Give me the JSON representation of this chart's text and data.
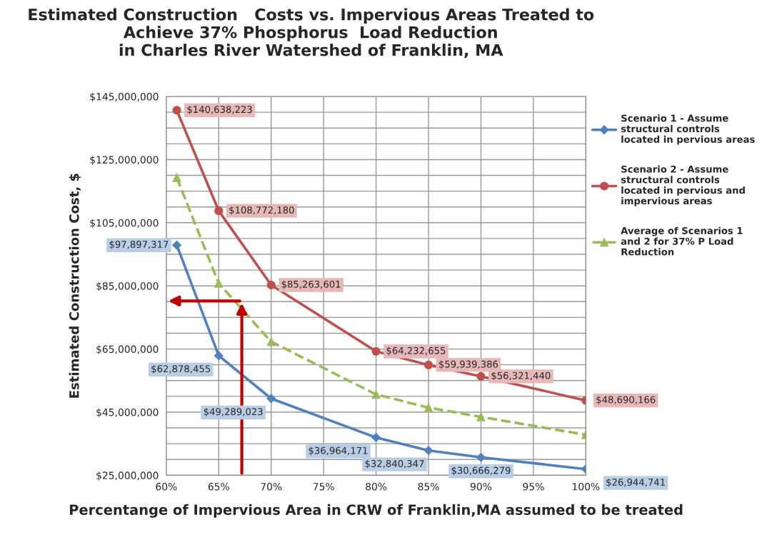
{
  "chart_data": {
    "type": "line",
    "title": "Estimated Construction   Costs vs. Impervious Areas Treated to\nAchieve 37% Phosphorus  Load Reduction\nin Charles River Watershed of Franklin, MA",
    "xlabel": "Percentange of Impervious Area in CRW of Franklin,MA assumed to be treated",
    "ylabel": "Estimated Construction Cost, $",
    "x": [
      61,
      65,
      70,
      80,
      85,
      90,
      100
    ],
    "series": [
      {
        "name": "Scenario 1 - Assume\nstructural controls\nlocated in pervious areas",
        "color": "#4f81bd",
        "marker": "diamond",
        "line_style": "solid",
        "values": [
          97897317,
          62878455,
          49289023,
          36964171,
          32840347,
          30666279,
          26944741
        ],
        "value_labels": [
          "$97,897,317",
          "$62,878,455",
          "$49,289,023",
          "$36,964,171",
          "$32,840,347",
          "$30,666,279",
          "$26,944,741"
        ]
      },
      {
        "name": "Scenario 2 - Assume\nstructural controls\nlocated in pervious and\nimpervious areas",
        "color": "#c0504d",
        "marker": "circle",
        "line_style": "solid",
        "values": [
          140638223,
          108772180,
          85263601,
          64232655,
          59939386,
          56321440,
          48690166
        ],
        "value_labels": [
          "$140,638,223",
          "$108,772,180",
          "$85,263,601",
          "$64,232,655",
          "$59,939,386",
          "$56,321,440",
          "$48,690,166"
        ]
      },
      {
        "name": "Average of Scenarios 1\nand 2 for 37% P Load\nReduction",
        "color": "#9bbb59",
        "marker": "triangle",
        "line_style": "dashed",
        "values": [
          119300000,
          85800000,
          67300000,
          50600000,
          46400000,
          43500000,
          37800000
        ]
      }
    ],
    "xlim": [
      60,
      100
    ],
    "xticks": [
      {
        "value": 60,
        "label": "60%"
      },
      {
        "value": 65,
        "label": "65%"
      },
      {
        "value": 70,
        "label": "70%"
      },
      {
        "value": 75,
        "label": "75%"
      },
      {
        "value": 80,
        "label": "80%"
      },
      {
        "value": 85,
        "label": "85%"
      },
      {
        "value": 90,
        "label": "90%"
      },
      {
        "value": 95,
        "label": "95%"
      },
      {
        "value": 100,
        "label": "100%"
      }
    ],
    "ylim": [
      25000000,
      145000000
    ],
    "yticks": [
      {
        "value": 25000000,
        "label": "$25,000,000"
      },
      {
        "value": 45000000,
        "label": "$45,000,000"
      },
      {
        "value": 65000000,
        "label": "$65,000,000"
      },
      {
        "value": 85000000,
        "label": "$85,000,000"
      },
      {
        "value": 105000000,
        "label": "$105,000,000"
      },
      {
        "value": 125000000,
        "label": "$125,000,000"
      },
      {
        "value": 145000000,
        "label": "$145,000,000"
      }
    ],
    "grid": true,
    "legend": "right"
  }
}
